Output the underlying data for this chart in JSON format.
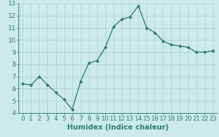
{
  "xlabel": "Humidex (Indice chaleur)",
  "x_values": [
    0,
    1,
    2,
    3,
    4,
    5,
    6,
    7,
    8,
    9,
    10,
    11,
    12,
    13,
    14,
    15,
    16,
    17,
    18,
    19,
    20,
    21,
    22,
    23
  ],
  "y_values": [
    6.4,
    6.3,
    7.0,
    6.3,
    5.7,
    5.1,
    4.3,
    6.6,
    8.1,
    8.3,
    9.4,
    11.1,
    11.7,
    11.9,
    12.8,
    11.0,
    10.6,
    9.9,
    9.6,
    9.5,
    9.4,
    9.0,
    9.0,
    9.1
  ],
  "line_color": "#2e7d6e",
  "marker": "D",
  "marker_size": 2.2,
  "line_width": 1.0,
  "ylim": [
    4,
    13
  ],
  "xlim": [
    -0.5,
    23.5
  ],
  "yticks": [
    4,
    5,
    6,
    7,
    8,
    9,
    10,
    11,
    12,
    13
  ],
  "xticks": [
    0,
    1,
    2,
    3,
    4,
    5,
    6,
    7,
    8,
    9,
    10,
    11,
    12,
    13,
    14,
    15,
    16,
    17,
    18,
    19,
    20,
    21,
    22,
    23
  ],
  "background_color": "#cceae7",
  "grid_color": "#aed4d0",
  "tick_labelsize": 6.5,
  "xlabel_fontsize": 7.5
}
